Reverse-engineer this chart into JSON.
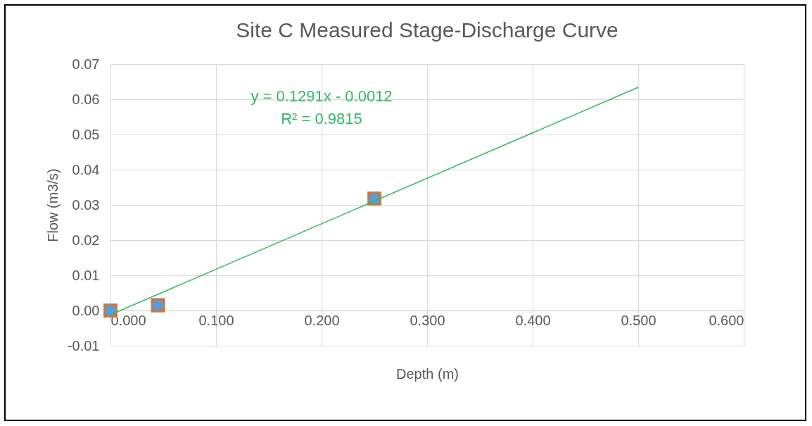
{
  "chart_data": {
    "type": "scatter",
    "title": "Site C Measured Stage-Discharge Curve",
    "xlabel": "Depth (m)",
    "ylabel": "Flow (m3/s)",
    "x": [
      0,
      0.045,
      0.25
    ],
    "series": [
      {
        "type": "scatter",
        "color": "#e0701e",
        "marker": "square",
        "values": [
          0,
          0.0015,
          0.0318
        ]
      },
      {
        "type": "scatter",
        "color": "#5b9bd5",
        "marker": "circle",
        "values": [
          0,
          0.0015,
          0.0318
        ]
      },
      {
        "type": "line",
        "color": "#2fb865",
        "marker": "none",
        "x": [
          0,
          0.5
        ],
        "values": [
          -0.0012,
          0.0634
        ]
      }
    ],
    "annotations": [
      "y = 0.1291x - 0.0012",
      "R² = 0.9815"
    ],
    "xlim": [
      0,
      0.6
    ],
    "xticks": [
      {
        "value": 0,
        "label": "0.000"
      },
      {
        "value": 0.1,
        "label": "0.100"
      },
      {
        "value": 0.2,
        "label": "0.200"
      },
      {
        "value": 0.3,
        "label": "0.300"
      },
      {
        "value": 0.4,
        "label": "0.400"
      },
      {
        "value": 0.5,
        "label": "0.500"
      },
      {
        "value": 0.6,
        "label": "0.600"
      }
    ],
    "ylim": [
      -0.01,
      0.07
    ],
    "yticks": [
      -0.01,
      {
        "value": 0,
        "label": "0.00"
      },
      0.01,
      0.02,
      0.03,
      0.04,
      0.05,
      0.06,
      0.07
    ],
    "grid": true
  }
}
